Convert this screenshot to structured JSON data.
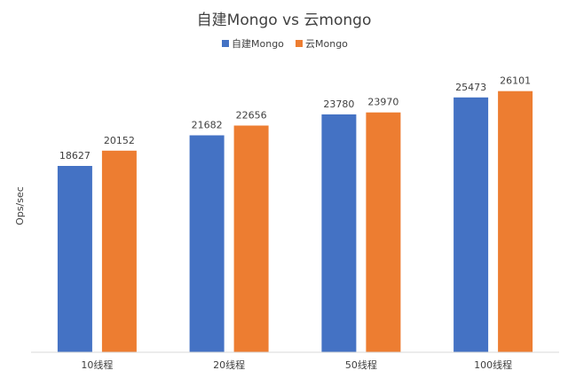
{
  "chart_data": {
    "type": "bar",
    "title": "自建Mongo vs 云mongo",
    "xlabel": "",
    "ylabel": "Ops/sec",
    "categories": [
      "10线程",
      "20线程",
      "50线程",
      "100线程"
    ],
    "series": [
      {
        "name": "自建Mongo",
        "values": [
          18627,
          21682,
          23780,
          25473
        ],
        "color": "#4472C4"
      },
      {
        "name": "云Mongo",
        "values": [
          20152,
          22656,
          23970,
          26101
        ],
        "color": "#ED7D31"
      }
    ],
    "ylim": [
      0,
      29000
    ],
    "grid": false,
    "legend_position": "top-center",
    "axis_color": "#D9D9D9"
  }
}
